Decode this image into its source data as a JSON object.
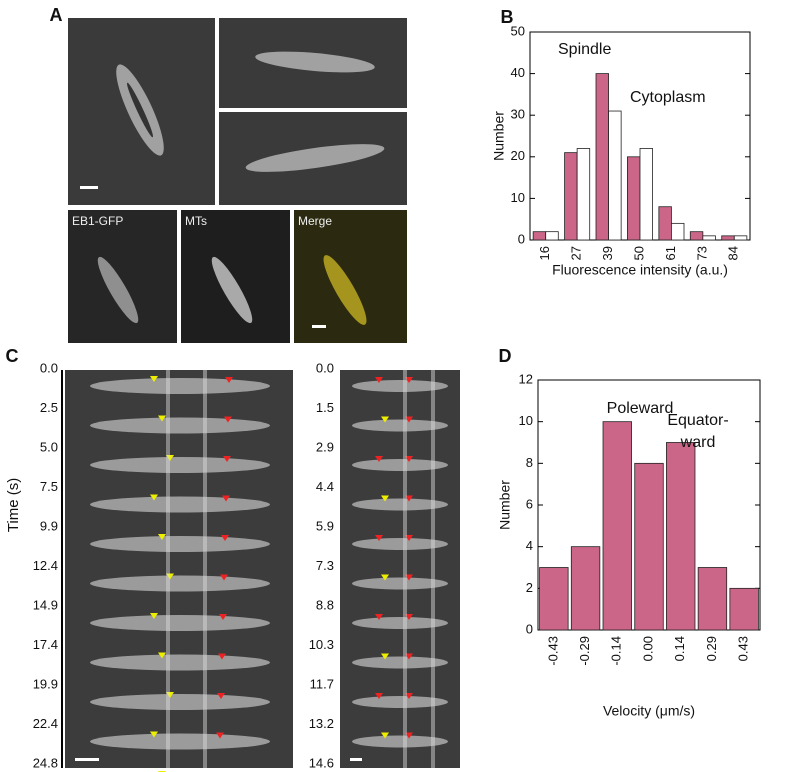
{
  "panel_labels": [
    "A",
    "B",
    "C",
    "D"
  ],
  "panel_a": {
    "channel_labels": [
      "EB1-GFP",
      "MTs",
      "Merge"
    ]
  },
  "panel_c": {
    "y_label": "Time (s)",
    "left_times": [
      "0.0",
      "2.5",
      "5.0",
      "7.5",
      "9.9",
      "12.4",
      "14.9",
      "17.4",
      "19.9",
      "22.4",
      "24.8"
    ],
    "right_times": [
      "0.0",
      "1.5",
      "2.9",
      "4.4",
      "5.9",
      "7.3",
      "8.8",
      "10.3",
      "11.7",
      "13.2",
      "14.6"
    ]
  },
  "chart_data": [
    {
      "type": "bar",
      "x_label": "Fluorescence intensity (a.u.)",
      "y_label": "Number",
      "categories": [
        "16",
        "27",
        "39",
        "50",
        "61",
        "73",
        "84"
      ],
      "series": [
        {
          "name": "Spindle",
          "color": "#cc6688",
          "values": [
            2,
            21,
            40,
            20,
            8,
            2,
            1
          ]
        },
        {
          "name": "Cytoplasm",
          "color": "#ffffff",
          "values": [
            2,
            22,
            31,
            22,
            4,
            1,
            1
          ]
        }
      ],
      "ylim": [
        0,
        50
      ],
      "yticks": [
        0,
        10,
        20,
        30,
        40,
        50
      ]
    },
    {
      "type": "bar",
      "x_label": "Velocity (μm/s)",
      "y_label": "Number",
      "categories": [
        "-0.43",
        "-0.29",
        "-0.14",
        "0.00",
        "0.14",
        "0.29",
        "0.43"
      ],
      "values": [
        3,
        4,
        10,
        8,
        9,
        3,
        2
      ],
      "color": "#cc6688",
      "annotations": [
        "Poleward",
        "Equator-",
        "ward"
      ],
      "ylim": [
        0,
        12
      ],
      "yticks": [
        0,
        2,
        4,
        6,
        8,
        10,
        12
      ]
    }
  ]
}
